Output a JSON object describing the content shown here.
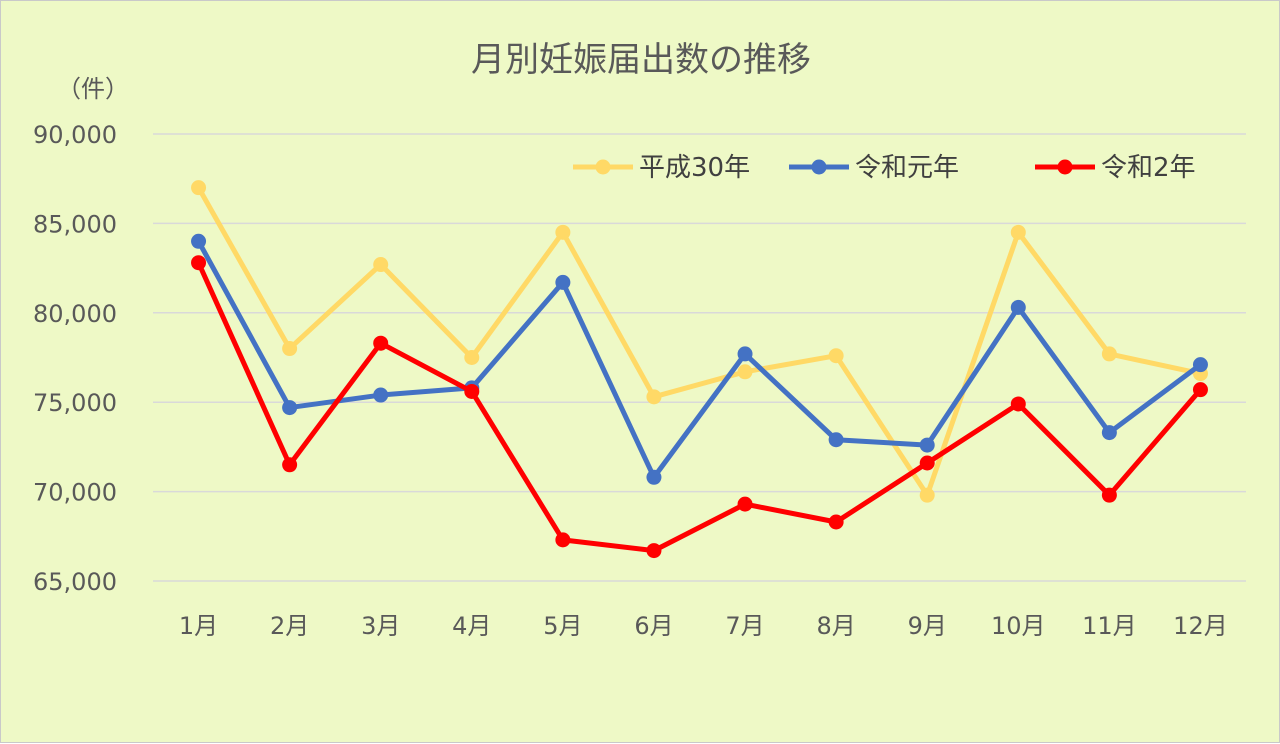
{
  "chart_data": {
    "type": "line",
    "title": "月別妊娠届出数の推移",
    "unit_label": "（件）",
    "xlabel": "",
    "ylabel": "",
    "categories": [
      "1月",
      "2月",
      "3月",
      "4月",
      "5月",
      "6月",
      "7月",
      "8月",
      "9月",
      "10月",
      "11月",
      "12月"
    ],
    "y_ticks": [
      "65,000",
      "70,000",
      "75,000",
      "80,000",
      "85,000",
      "90,000"
    ],
    "ylim": [
      65000,
      90000
    ],
    "grid": true,
    "legend_position": "top-right",
    "series": [
      {
        "name": "平成30年",
        "color": "#ffd966",
        "values": [
          87000,
          78000,
          82700,
          77500,
          84500,
          75300,
          76700,
          77600,
          69800,
          84500,
          77700,
          76600
        ]
      },
      {
        "name": "令和元年",
        "color": "#4472c4",
        "values": [
          84000,
          74700,
          75400,
          75800,
          81700,
          70800,
          77700,
          72900,
          72600,
          80300,
          73300,
          77100
        ]
      },
      {
        "name": "令和2年",
        "color": "#ff0000",
        "values": [
          82800,
          71500,
          78300,
          75600,
          67300,
          66700,
          69300,
          68300,
          71600,
          74900,
          69800,
          75700
        ]
      }
    ]
  }
}
